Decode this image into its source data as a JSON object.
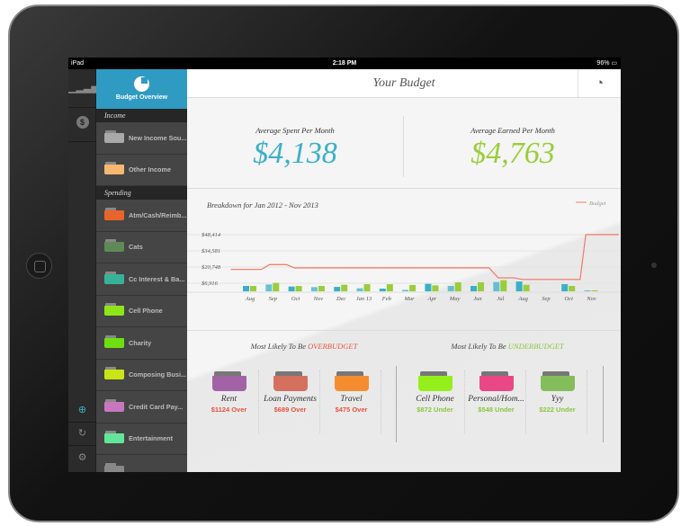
{
  "status": {
    "device": "iPad",
    "time": "2:18 PM",
    "battery": "96%"
  },
  "sidebar": {
    "title": "Budget Overview",
    "sections": [
      {
        "header": "Income",
        "items": [
          {
            "label": "New Income Sou...",
            "color": "#a9a9a9"
          },
          {
            "label": "Other Income",
            "color": "#f6b870"
          }
        ]
      },
      {
        "header": "Spending",
        "items": [
          {
            "label": "Atm/Cash/Reimb...",
            "color": "#e8642c"
          },
          {
            "label": "Cats",
            "color": "#5f8a55"
          },
          {
            "label": "Cc Interest & Ba...",
            "color": "#37b29a"
          },
          {
            "label": "Cell Phone",
            "color": "#8ee619"
          },
          {
            "label": "Charity",
            "color": "#6ee010"
          },
          {
            "label": "Composing Busi...",
            "color": "#c9e516"
          },
          {
            "label": "Credit Card Pay...",
            "color": "#c777bf"
          },
          {
            "label": "Entertainment",
            "color": "#62e79a"
          },
          {
            "label": "",
            "color": "#888888"
          }
        ]
      }
    ]
  },
  "header": {
    "title": "Your Budget"
  },
  "summary": {
    "spent_label": "Average Spent Per Month",
    "spent_value": "$4,138",
    "spent_color": "#3ab0c8",
    "earned_label": "Average Earned Per Month",
    "earned_value": "$4,763",
    "earned_color": "#9acd3a"
  },
  "chart_data": {
    "type": "bar",
    "title": "Breakdown for Jan 2012 - Nov 2013",
    "legend": "Budget",
    "legend_position": "top-right",
    "categories": [
      "Aug",
      "Sep",
      "Oct",
      "Nov",
      "Dec",
      "Jan 13",
      "Feb",
      "Mar",
      "Apr",
      "May",
      "Jun",
      "Jul",
      "Aug",
      "Sep",
      "Oct",
      "Nov"
    ],
    "yticks": [
      {
        "value": 48414,
        "label": "$48,414"
      },
      {
        "value": 34581,
        "label": "$34,581"
      },
      {
        "value": 20748,
        "label": "$20,748"
      },
      {
        "value": 6916,
        "label": "$6,916"
      }
    ],
    "series": [
      {
        "name": "Spent",
        "color": "#3ab0c8",
        "values": [
          4600,
          5900,
          4100,
          3600,
          3800,
          2600,
          2300,
          1300,
          6400,
          4600,
          4600,
          7900,
          8400,
          0,
          6100,
          800
        ]
      },
      {
        "name": "Earned",
        "color": "#9acd3a",
        "values": [
          4600,
          7200,
          4600,
          4600,
          5600,
          6100,
          6100,
          5400,
          5100,
          7700,
          7700,
          9500,
          5600,
          0,
          4600,
          800
        ]
      },
      {
        "name": "Budget",
        "type": "line",
        "color": "#f08070",
        "points": [
          [
            -0.85,
            18700
          ],
          [
            0.5,
            18700
          ],
          [
            0.85,
            22800
          ],
          [
            1.6,
            22800
          ],
          [
            1.95,
            20000
          ],
          [
            10.5,
            20000
          ],
          [
            10.9,
            11500
          ],
          [
            11.6,
            11500
          ],
          [
            11.95,
            10200
          ],
          [
            14.5,
            10200
          ],
          [
            14.75,
            48414
          ],
          [
            16.2,
            48414
          ]
        ]
      }
    ]
  },
  "over": {
    "prefix": "Most Likely To Be ",
    "word": "OVERBUDGET",
    "color": "#e8533f",
    "items": [
      {
        "name": "Rent",
        "amount": "$1124 Over",
        "color": "#a262a6"
      },
      {
        "name": "Loan Payments",
        "amount": "$689 Over",
        "color": "#d5705f"
      },
      {
        "name": "Travel",
        "amount": "$475 Over",
        "color": "#f58d30"
      }
    ]
  },
  "under": {
    "prefix": "Most Likely To Be ",
    "word": "UNDERBUDGET",
    "color": "#8cc63f",
    "items": [
      {
        "name": "Cell Phone",
        "amount": "$872 Under",
        "color": "#95ef1a"
      },
      {
        "name": "Personal/Hom...",
        "amount": "$548 Under",
        "color": "#e94785"
      },
      {
        "name": "Yyy",
        "amount": "$222 Under",
        "color": "#84bd5c"
      }
    ]
  }
}
